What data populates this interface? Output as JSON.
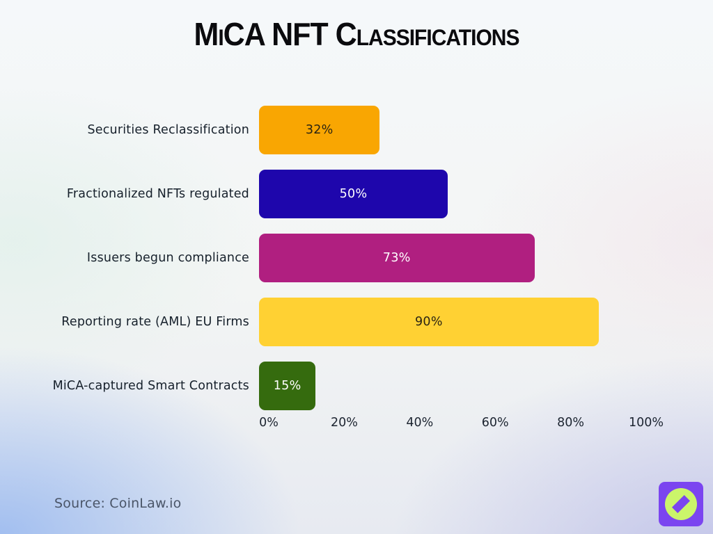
{
  "title": "MiCA NFT Classifications",
  "source_text": "Source: CoinLaw.io",
  "logo": {
    "bg_color": "#7b45f0",
    "circle_color": "#cbf56a",
    "diamond_color": "#7b45f0"
  },
  "chart_data": {
    "type": "bar",
    "orientation": "horizontal",
    "title": "MiCA NFT Classifications",
    "categories": [
      "Securities Reclassification",
      "Fractionalized NFTs regulated",
      "Issuers begun compliance",
      "Reporting rate (AML) EU Firms",
      "MiCA-captured Smart Contracts"
    ],
    "values": [
      32,
      50,
      73,
      90,
      15
    ],
    "value_labels": [
      "32%",
      "50%",
      "73%",
      "90%",
      "15%"
    ],
    "bar_colors": [
      "#f9a602",
      "#1e06ac",
      "#b01f80",
      "#ffd133",
      "#356b0e"
    ],
    "value_text_colors": [
      "#2b2413",
      "#ffffff",
      "#ffffff",
      "#2b2413",
      "#ffffff"
    ],
    "x_ticks": [
      "0%",
      "20%",
      "40%",
      "60%",
      "80%",
      "100%"
    ],
    "xlim": [
      0,
      100
    ],
    "grid": false,
    "legend": "none"
  }
}
